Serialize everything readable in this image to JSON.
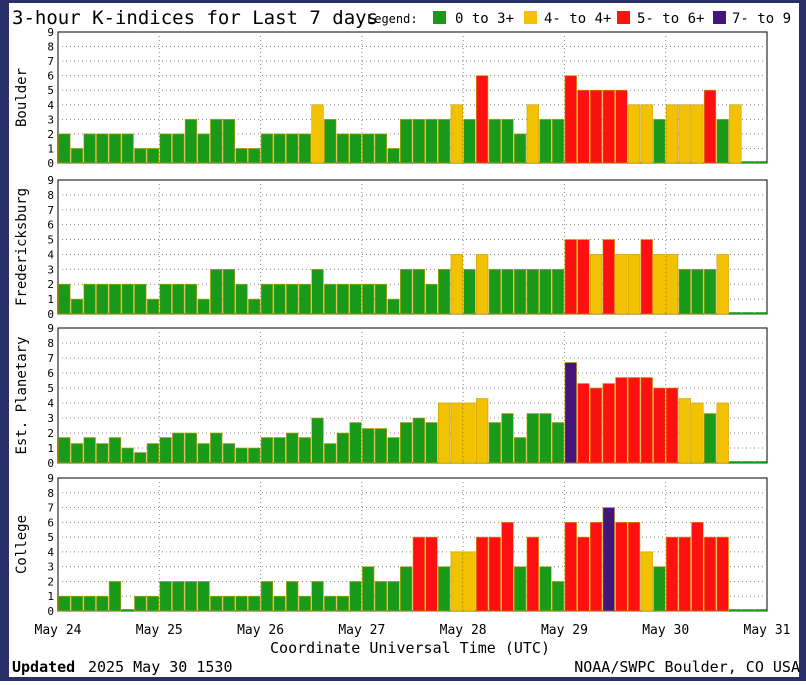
{
  "title": "3-hour K-indices for Last 7 days",
  "legend": {
    "label": "Legend:",
    "items": [
      {
        "label": "0 to 3+",
        "color": "#1a9a1a"
      },
      {
        "label": "4- to 4+",
        "color": "#f2c200"
      },
      {
        "label": "5- to 6+",
        "color": "#ff1010"
      },
      {
        "label": "7- to 9",
        "color": "#44147a"
      }
    ]
  },
  "x_axis": {
    "label": "Coordinate Universal Time (UTC)",
    "ticks": [
      "May 24",
      "May 25",
      "May 26",
      "May 27",
      "May 28",
      "May 29",
      "May 30",
      "May 31"
    ]
  },
  "footer": {
    "updated_label": "Updated",
    "updated_value": "2025 May 30 1530",
    "credit": "NOAA/SWPC Boulder, CO USA"
  },
  "colors": {
    "frame": "#2a2f6a",
    "green": "#1a9a1a",
    "yellow": "#f2c200",
    "red": "#ff1010",
    "purple": "#44147a",
    "bar_outline": "#e6b800",
    "grid": "#888888"
  },
  "chart_data": [
    {
      "type": "bar",
      "station": "Boulder",
      "ylim": [
        0,
        9
      ],
      "ticks": [
        0,
        1,
        2,
        3,
        4,
        5,
        6,
        7,
        8,
        9
      ],
      "bins_per_day": 8,
      "values": [
        2,
        1,
        2,
        2,
        2,
        2,
        1,
        1,
        2,
        2,
        3,
        2,
        3,
        3,
        1,
        1,
        2,
        2,
        2,
        2,
        4,
        3,
        2,
        2,
        2,
        2,
        1,
        3,
        3,
        3,
        3,
        4,
        3,
        6,
        3,
        3,
        2,
        4,
        3,
        3,
        6,
        5,
        5,
        5,
        5,
        4,
        4,
        3,
        4,
        4,
        4,
        5,
        3,
        4,
        0.1,
        0.1,
        0.1,
        0.1,
        0.1,
        0.1,
        0.1,
        0.1,
        0.1,
        0.1
      ]
    },
    {
      "type": "bar",
      "station": "Fredericksburg",
      "ylim": [
        0,
        9
      ],
      "ticks": [
        0,
        1,
        2,
        3,
        4,
        5,
        6,
        7,
        8,
        9
      ],
      "bins_per_day": 8,
      "values": [
        2,
        1,
        2,
        2,
        2,
        2,
        2,
        1,
        2,
        2,
        2,
        1,
        3,
        3,
        2,
        1,
        2,
        2,
        2,
        2,
        3,
        2,
        2,
        2,
        2,
        2,
        1,
        3,
        3,
        2,
        3,
        4,
        3,
        4,
        3,
        3,
        3,
        3,
        3,
        3,
        5,
        5,
        4,
        5,
        4,
        4,
        5,
        4,
        4,
        3,
        3,
        3,
        4,
        0.1,
        0.1,
        0.1,
        0.1,
        0.1,
        0.1,
        0.1,
        0.1,
        0.1,
        0.1,
        0.1
      ]
    },
    {
      "type": "bar",
      "station": "Est. Planetary",
      "ylim": [
        0,
        9
      ],
      "ticks": [
        0,
        1,
        2,
        3,
        4,
        5,
        6,
        7,
        8,
        9
      ],
      "bins_per_day": 8,
      "values": [
        1.7,
        1.3,
        1.7,
        1.3,
        1.7,
        1.0,
        0.7,
        1.3,
        1.7,
        2.0,
        2.0,
        1.3,
        2.0,
        1.3,
        1.0,
        1.0,
        1.7,
        1.7,
        2.0,
        1.7,
        3.0,
        1.3,
        2.0,
        2.7,
        2.3,
        2.3,
        1.7,
        2.7,
        3.0,
        2.7,
        4.0,
        4.0,
        4.0,
        4.3,
        2.7,
        3.3,
        1.7,
        3.3,
        3.3,
        2.7,
        6.7,
        5.3,
        5.0,
        5.3,
        5.7,
        5.7,
        5.7,
        5.0,
        5.0,
        4.3,
        4.0,
        3.3,
        4.0,
        0.1,
        0.1,
        0.1,
        0.1,
        0.1,
        0.1,
        0.1,
        0.1,
        0.1,
        0.1,
        0.1
      ]
    },
    {
      "type": "bar",
      "station": "College",
      "ylim": [
        0,
        9
      ],
      "ticks": [
        0,
        1,
        2,
        3,
        4,
        5,
        6,
        7,
        8,
        9
      ],
      "bins_per_day": 8,
      "values": [
        1,
        1,
        1,
        1,
        2,
        0.1,
        1,
        1,
        2,
        2,
        2,
        2,
        1,
        1,
        1,
        1,
        2,
        1,
        2,
        1,
        2,
        1,
        1,
        2,
        3,
        2,
        2,
        3,
        5,
        5,
        3,
        4,
        4,
        5,
        5,
        6,
        3,
        5,
        3,
        2,
        6,
        5,
        6,
        7,
        6,
        6,
        4,
        3,
        5,
        5,
        6,
        5,
        5,
        0.1,
        0.1,
        0.1,
        0.1,
        0.1,
        0.1,
        0.1,
        0.1,
        0.1,
        0.1,
        0.1
      ]
    }
  ]
}
